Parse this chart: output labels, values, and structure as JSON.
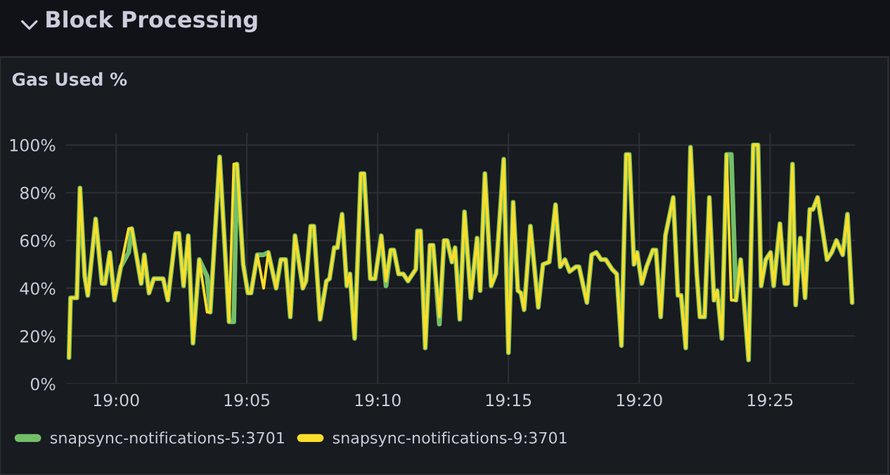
{
  "chart_data": {
    "type": "line",
    "title": "Block Processing",
    "subtitle": "Gas Used %",
    "x": [
      18.97,
      18.971,
      18.975,
      18.977,
      18.98,
      18.982,
      18.987,
      18.991,
      18.993,
      18.996,
      18.999,
      19.003,
      19.008,
      19.01,
      19.016,
      19.018,
      19.021,
      19.024,
      19.03,
      19.033,
      19.038,
      19.04,
      19.043,
      19.046,
      19.049,
      19.053,
      19.058,
      19.06,
      19.066,
      19.072,
      19.075,
      19.077,
      19.081,
      19.084,
      19.086,
      19.09,
      19.094,
      19.097,
      19.102,
      19.105,
      19.108,
      19.111,
      19.114,
      19.119,
      19.121,
      19.124,
      19.126,
      19.13,
      19.134,
      19.136,
      19.139,
      19.141,
      19.144,
      19.147,
      19.149,
      19.152,
      19.156,
      19.158,
      19.162,
      19.165,
      19.169,
      19.172,
      19.175,
      19.177,
      19.18,
      19.183,
      19.186,
      19.191,
      19.192,
      19.194,
      19.197,
      19.2,
      19.202,
      19.206,
      19.209,
      19.211,
      19.214,
      19.216,
      19.219,
      19.222,
      19.226,
      19.23,
      19.232,
      19.235,
      19.239,
      19.242,
      19.247,
      19.25,
      19.253,
      19.256,
      19.258,
      19.26,
      19.264,
      19.269,
      19.272,
      19.276,
      19.28,
      19.283,
      19.286,
      19.289,
      19.293,
      19.295,
      19.3,
      19.303,
      19.306,
      19.309,
      19.312,
      19.316,
      19.319,
      19.322,
      19.325,
      19.327,
      19.33,
      19.332,
      19.335,
      19.338,
      19.342,
      19.344,
      19.347,
      19.35,
      19.355,
      19.358,
      19.36,
      19.363,
      19.366,
      19.37,
      19.372,
      19.375,
      19.378,
      19.381,
      19.383,
      19.386,
      19.389,
      19.392,
      19.395,
      19.398,
      19.403,
      19.406,
      19.409,
      19.411,
      19.414,
      19.417,
      19.419,
      19.423,
      19.426,
      19.428,
      19.431,
      19.433,
      19.436,
      19.439,
      19.442,
      19.444,
      19.447,
      19.453,
      19.456,
      19.459,
      19.463,
      19.466,
      19.469
    ],
    "series": [
      {
        "name": "snapsync-notifications-5:3701",
        "color": "#73bf69",
        "values": [
          11,
          36,
          36,
          82,
          45,
          37,
          69,
          42,
          42,
          55,
          35,
          49,
          55,
          65,
          42,
          54,
          38,
          44,
          44,
          35,
          63,
          63,
          41,
          62,
          17,
          52,
          45,
          30,
          95,
          26,
          26,
          92,
          50,
          38,
          38,
          54,
          54,
          55,
          40,
          52,
          52,
          28,
          62,
          40,
          43,
          66,
          66,
          27,
          43,
          44,
          57,
          57,
          71,
          41,
          46,
          19,
          88,
          88,
          44,
          44,
          62,
          41,
          56,
          56,
          46,
          46,
          43,
          48,
          64,
          64,
          15,
          58,
          58,
          25,
          60,
          60,
          51,
          57,
          27,
          72,
          36,
          61,
          39,
          88,
          41,
          46,
          94,
          13,
          76,
          39,
          38,
          31,
          66,
          32,
          50,
          51,
          75,
          49,
          52,
          47,
          49,
          49,
          34,
          54,
          55,
          52,
          52,
          48,
          46,
          16,
          96,
          96,
          50,
          55,
          42,
          49,
          56,
          56,
          28,
          62,
          78,
          37,
          37,
          15,
          99,
          46,
          28,
          28,
          78,
          35,
          39,
          19,
          96,
          96,
          35,
          52,
          10,
          100,
          100,
          41,
          52,
          55,
          41,
          67,
          42,
          42,
          92,
          33,
          61,
          36,
          73,
          73,
          78,
          52,
          55,
          60,
          54,
          71,
          34
        ]
      },
      {
        "name": "snapsync-notifications-9:3701",
        "color": "#fade2a",
        "values": [
          11,
          36,
          36,
          82,
          45,
          37,
          69,
          42,
          42,
          55,
          35,
          49,
          65,
          65,
          42,
          54,
          38,
          44,
          44,
          35,
          63,
          63,
          41,
          62,
          17,
          52,
          30,
          30,
          95,
          26,
          92,
          92,
          50,
          38,
          38,
          54,
          40,
          55,
          40,
          52,
          52,
          28,
          62,
          40,
          43,
          66,
          66,
          27,
          43,
          44,
          57,
          57,
          71,
          41,
          46,
          19,
          88,
          88,
          44,
          44,
          62,
          43,
          56,
          56,
          46,
          46,
          43,
          48,
          64,
          64,
          15,
          58,
          58,
          28,
          60,
          60,
          51,
          57,
          27,
          72,
          36,
          61,
          39,
          88,
          41,
          46,
          94,
          13,
          76,
          39,
          38,
          31,
          66,
          32,
          50,
          51,
          75,
          49,
          52,
          47,
          49,
          49,
          34,
          54,
          55,
          52,
          52,
          48,
          46,
          16,
          96,
          96,
          50,
          55,
          42,
          49,
          56,
          56,
          28,
          62,
          78,
          37,
          37,
          15,
          99,
          46,
          28,
          28,
          78,
          35,
          39,
          19,
          96,
          35,
          35,
          52,
          10,
          100,
          100,
          41,
          52,
          55,
          41,
          67,
          42,
          42,
          92,
          33,
          61,
          36,
          73,
          73,
          78,
          52,
          55,
          60,
          54,
          71,
          34
        ]
      }
    ],
    "xlim": [
      18.968,
      19.471
    ],
    "xticks": [
      {
        "value": 19.0,
        "label": "19:00"
      },
      {
        "value": 19.0833,
        "label": "19:05"
      },
      {
        "value": 19.1667,
        "label": "19:10"
      },
      {
        "value": 19.25,
        "label": "19:15"
      },
      {
        "value": 19.3333,
        "label": "19:20"
      },
      {
        "value": 19.4167,
        "label": "19:25"
      }
    ],
    "ylim": [
      0,
      105
    ],
    "yticks": [
      {
        "value": 0,
        "label": "0%"
      },
      {
        "value": 20,
        "label": "20%"
      },
      {
        "value": 40,
        "label": "40%"
      },
      {
        "value": 60,
        "label": "60%"
      },
      {
        "value": 80,
        "label": "80%"
      },
      {
        "value": 100,
        "label": "100%"
      }
    ],
    "grid": true,
    "legend": "bottom",
    "marker": "none",
    "line_style": "solid"
  }
}
